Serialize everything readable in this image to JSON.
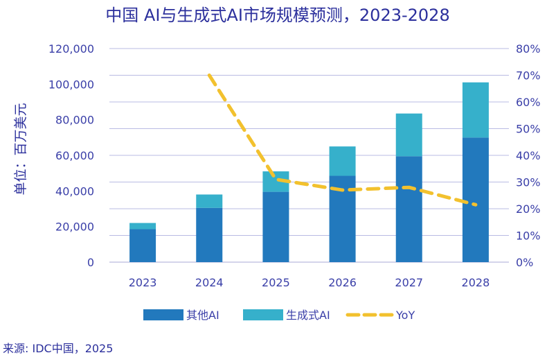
{
  "chart_data": {
    "type": "bar",
    "title": "中国 AI与生成式AI市场规模预测，2023-2028",
    "ylabel": "单位：百万美元",
    "categories": [
      "2023",
      "2024",
      "2025",
      "2026",
      "2027",
      "2028"
    ],
    "ylim": [
      0,
      120000
    ],
    "y_ticks": [
      "0",
      "20,000",
      "40,000",
      "60,000",
      "80,000",
      "100,000",
      "120,000"
    ],
    "y2lim": [
      0,
      80
    ],
    "y2_ticks": [
      "0%",
      "10%",
      "20%",
      "30%",
      "40%",
      "50%",
      "60%",
      "70%",
      "80%"
    ],
    "stacked": true,
    "grid": true,
    "series": [
      {
        "name": "其他AI",
        "kind": "bar",
        "color": "#2279bd",
        "values": [
          18500,
          30500,
          39500,
          48500,
          59500,
          70000
        ]
      },
      {
        "name": "生成式AI",
        "kind": "bar",
        "color": "#36b0cb",
        "values": [
          3500,
          7500,
          11500,
          16500,
          24000,
          31000
        ]
      },
      {
        "name": "YoY",
        "kind": "line",
        "style": "dashed",
        "axis": "right",
        "color": "#f2c12e",
        "values": [
          null,
          70,
          31,
          27,
          28,
          21.5
        ]
      }
    ],
    "legend_position": "bottom"
  },
  "source": "来源: IDC中国，2025"
}
